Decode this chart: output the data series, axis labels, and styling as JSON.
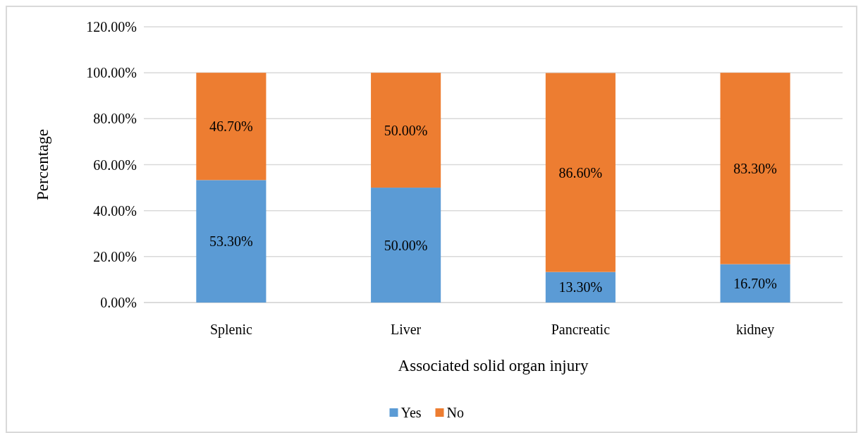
{
  "chart_data": {
    "type": "bar",
    "stacked": true,
    "xlabel": "Associated solid organ injury",
    "ylabel": "Percentage",
    "categories": [
      "Splenic",
      "Liver",
      "Pancreatic",
      "kidney"
    ],
    "series": [
      {
        "name": "Yes",
        "color": "#5b9bd5",
        "values": [
          53.3,
          50.0,
          13.3,
          16.7
        ],
        "value_labels": [
          "53.30%",
          "50.00%",
          "13.30%",
          "16.70%"
        ]
      },
      {
        "name": "No",
        "color": "#ed7d31",
        "values": [
          46.7,
          50.0,
          86.6,
          83.3
        ],
        "value_labels": [
          "46.70%",
          "50.00%",
          "86.60%",
          "83.30%"
        ]
      }
    ],
    "ylim": [
      0,
      120
    ],
    "yticks": [
      {
        "value": 0,
        "label": "0.00%"
      },
      {
        "value": 20,
        "label": "20.00%"
      },
      {
        "value": 40,
        "label": "40.00%"
      },
      {
        "value": 60,
        "label": "60.00%"
      },
      {
        "value": 80,
        "label": "80.00%"
      },
      {
        "value": 100,
        "label": "100.00%"
      },
      {
        "value": 120,
        "label": "120.00%"
      }
    ],
    "grid": "y",
    "legend": "bottom"
  }
}
